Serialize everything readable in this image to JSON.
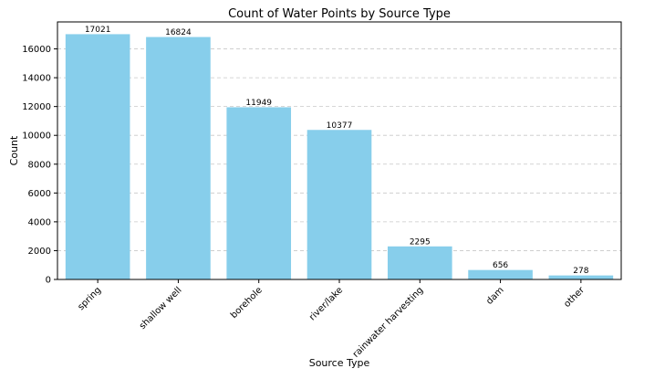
{
  "chart_data": {
    "type": "bar",
    "title": "Count of Water Points by Source Type",
    "xlabel": "Source Type",
    "ylabel": "Count",
    "categories": [
      "spring",
      "shallow well",
      "borehole",
      "river/lake",
      "rainwater harvesting",
      "dam",
      "other"
    ],
    "values": [
      17021,
      16824,
      11949,
      10377,
      2295,
      656,
      278
    ],
    "ylim": [
      0,
      17872
    ],
    "yticks": [
      0,
      2000,
      4000,
      6000,
      8000,
      10000,
      12000,
      14000,
      16000
    ],
    "grid": "y-dashed",
    "bar_color": "#87ceeb",
    "data_labels": true
  }
}
